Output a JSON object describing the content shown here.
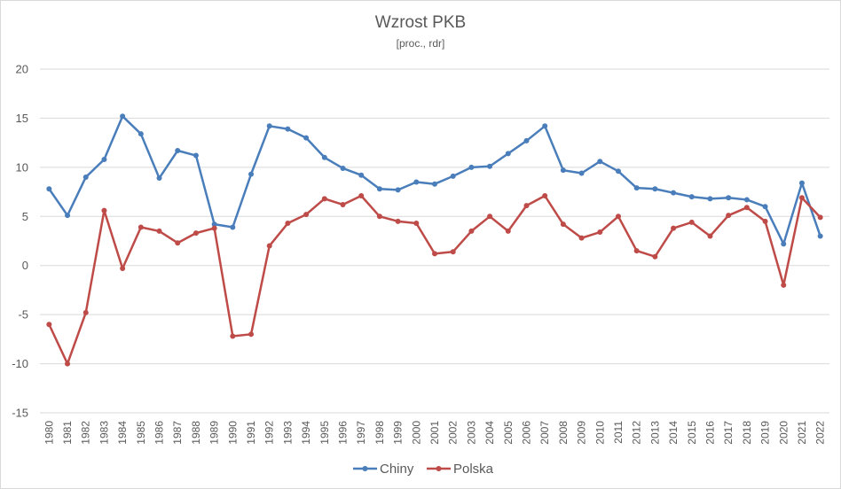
{
  "chart_data": {
    "type": "line",
    "title": "Wzrost PKB",
    "subtitle": "[proc., rdr]",
    "xlabel": "",
    "ylabel": "",
    "ylim": [
      -15,
      20
    ],
    "yticks": [
      "20",
      "15",
      "10",
      "5",
      "0",
      "-5",
      "-10",
      "-15"
    ],
    "grid": true,
    "legend_position": "bottom",
    "categories": [
      "1980",
      "1981",
      "1982",
      "1983",
      "1984",
      "1985",
      "1986",
      "1987",
      "1988",
      "1989",
      "1990",
      "1991",
      "1992",
      "1993",
      "1994",
      "1995",
      "1996",
      "1997",
      "1998",
      "1999",
      "2000",
      "2001",
      "2002",
      "2003",
      "2004",
      "2005",
      "2006",
      "2007",
      "2008",
      "2009",
      "2010",
      "2011",
      "2012",
      "2013",
      "2014",
      "2015",
      "2016",
      "2017",
      "2018",
      "2019",
      "2020",
      "2021",
      "2022"
    ],
    "series": [
      {
        "name": "Chiny",
        "color": "#4a7ebb",
        "values": [
          7.8,
          5.1,
          9.0,
          10.8,
          15.2,
          13.4,
          8.9,
          11.7,
          11.2,
          4.2,
          3.9,
          9.3,
          14.2,
          13.9,
          13.0,
          11.0,
          9.9,
          9.2,
          7.8,
          7.7,
          8.5,
          8.3,
          9.1,
          10.0,
          10.1,
          11.4,
          12.7,
          14.2,
          9.7,
          9.4,
          10.6,
          9.6,
          7.9,
          7.8,
          7.4,
          7.0,
          6.8,
          6.9,
          6.7,
          6.0,
          2.2,
          8.4,
          3.0
        ]
      },
      {
        "name": "Polska",
        "color": "#be4b48",
        "values": [
          -6.0,
          -10.0,
          -4.8,
          5.6,
          -0.3,
          3.9,
          3.5,
          2.3,
          3.3,
          3.8,
          -7.2,
          -7.0,
          2.0,
          4.3,
          5.2,
          6.8,
          6.2,
          7.1,
          5.0,
          4.5,
          4.3,
          1.2,
          1.4,
          3.5,
          5.0,
          3.5,
          6.1,
          7.1,
          4.2,
          2.8,
          3.4,
          5.0,
          1.5,
          0.9,
          3.8,
          4.4,
          3.0,
          5.1,
          5.9,
          4.5,
          -2.0,
          6.9,
          4.9
        ]
      }
    ]
  }
}
